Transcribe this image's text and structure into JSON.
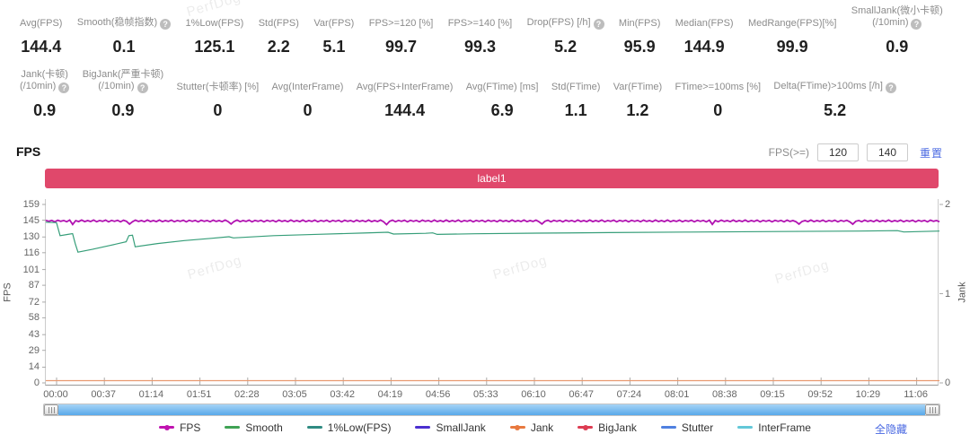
{
  "watermark": "PerfDog",
  "stats_row1": [
    {
      "lines": [
        "Avg(FPS)"
      ],
      "help": false,
      "value": "144.4"
    },
    {
      "lines": [
        "Smooth(稳帧指数)"
      ],
      "help": true,
      "value": "0.1"
    },
    {
      "lines": [
        "1%Low(FPS)"
      ],
      "help": false,
      "value": "125.1"
    },
    {
      "lines": [
        "Std(FPS)"
      ],
      "help": false,
      "value": "2.2"
    },
    {
      "lines": [
        "Var(FPS)"
      ],
      "help": false,
      "value": "5.1"
    },
    {
      "lines": [
        "FPS>=120 [%]"
      ],
      "help": false,
      "value": "99.7"
    },
    {
      "lines": [
        "FPS>=140 [%]"
      ],
      "help": false,
      "value": "99.3"
    },
    {
      "lines": [
        "Drop(FPS) [/h]"
      ],
      "help": true,
      "value": "5.2"
    },
    {
      "lines": [
        "Min(FPS)"
      ],
      "help": false,
      "value": "95.9"
    },
    {
      "lines": [
        "Median(FPS)"
      ],
      "help": false,
      "value": "144.9"
    },
    {
      "lines": [
        "MedRange(FPS)[%]"
      ],
      "help": false,
      "value": "99.9"
    },
    {
      "lines": [
        "SmallJank(微小卡顿)",
        "(/10min)"
      ],
      "help": true,
      "value": "0.9"
    }
  ],
  "stats_row2": [
    {
      "lines": [
        "Jank(卡顿)",
        "(/10min)"
      ],
      "help": true,
      "value": "0.9"
    },
    {
      "lines": [
        "BigJank(严重卡顿)",
        "(/10min)"
      ],
      "help": true,
      "value": "0.9"
    },
    {
      "lines": [
        "Stutter(卡顿率) [%]"
      ],
      "help": false,
      "value": "0"
    },
    {
      "lines": [
        "Avg(InterFrame)"
      ],
      "help": false,
      "value": "0"
    },
    {
      "lines": [
        "Avg(FPS+InterFrame)"
      ],
      "help": false,
      "value": "144.4"
    },
    {
      "lines": [
        "Avg(FTime) [ms]"
      ],
      "help": false,
      "value": "6.9"
    },
    {
      "lines": [
        "Std(FTime)"
      ],
      "help": false,
      "value": "1.1"
    },
    {
      "lines": [
        "Var(FTime)"
      ],
      "help": false,
      "value": "1.2"
    },
    {
      "lines": [
        "FTime>=100ms [%]"
      ],
      "help": false,
      "value": "0"
    },
    {
      "lines": [
        "Delta(FTime)>100ms [/h]"
      ],
      "help": true,
      "value": "5.2"
    }
  ],
  "section": {
    "title": "FPS",
    "filter_label": "FPS(>=)",
    "input1": "120",
    "input2": "140",
    "reset_label": "重置"
  },
  "banner": {
    "label": "label1",
    "color": "#e0486b"
  },
  "chart_data": {
    "type": "line",
    "title": "label1",
    "x_ticks": [
      "00:00",
      "00:37",
      "01:14",
      "01:51",
      "02:28",
      "03:05",
      "03:42",
      "04:19",
      "04:56",
      "05:33",
      "06:10",
      "06:47",
      "07:24",
      "08:01",
      "08:38",
      "09:15",
      "09:52",
      "10:29",
      "11:06"
    ],
    "y_left": {
      "label": "FPS",
      "ticks": [
        159,
        145,
        130,
        116,
        101,
        87,
        72,
        58,
        43,
        29,
        14,
        0
      ],
      "range": [
        0,
        159
      ]
    },
    "y_right": {
      "label": "Jank",
      "ticks": [
        2,
        1,
        0
      ],
      "range": [
        0,
        2
      ]
    },
    "grid": false,
    "legend_position": "bottom",
    "series": [
      {
        "name": "FPS",
        "axis": "left",
        "color": "#b113b1",
        "width": 1.8,
        "style": "jagged",
        "base": 144.3,
        "amp": 0.55,
        "dips": [
          [
            0.03,
            141.2
          ],
          [
            0.092,
            141.5
          ],
          [
            0.206,
            141.6
          ],
          [
            0.38,
            141.0
          ],
          [
            0.556,
            141.6
          ],
          [
            0.746,
            141.3
          ],
          [
            0.842,
            141.5
          ],
          [
            0.903,
            141.4
          ]
        ]
      },
      {
        "name": "Smooth",
        "axis": "left",
        "color": "#369e79",
        "width": 1.2,
        "style": "points",
        "points": [
          [
            0,
            143.2
          ],
          [
            0.012,
            142.8
          ],
          [
            0.016,
            131.2
          ],
          [
            0.024,
            132.2
          ],
          [
            0.03,
            133.0
          ],
          [
            0.033,
            124.0
          ],
          [
            0.036,
            116.5
          ],
          [
            0.052,
            119.0
          ],
          [
            0.072,
            122.5
          ],
          [
            0.09,
            125.8
          ],
          [
            0.093,
            131.2
          ],
          [
            0.097,
            131.6
          ],
          [
            0.1,
            121.3
          ],
          [
            0.125,
            124.2
          ],
          [
            0.155,
            126.8
          ],
          [
            0.185,
            128.8
          ],
          [
            0.205,
            130.2
          ],
          [
            0.21,
            129.2
          ],
          [
            0.255,
            131.2
          ],
          [
            0.305,
            132.4
          ],
          [
            0.355,
            133.5
          ],
          [
            0.383,
            134.2
          ],
          [
            0.389,
            132.6
          ],
          [
            0.425,
            133.3
          ],
          [
            0.433,
            133.7
          ],
          [
            0.438,
            132.3
          ],
          [
            0.48,
            132.9
          ],
          [
            0.55,
            133.4
          ],
          [
            0.63,
            133.9
          ],
          [
            0.72,
            134.4
          ],
          [
            0.82,
            134.9
          ],
          [
            0.91,
            135.3
          ],
          [
            0.953,
            135.7
          ],
          [
            0.96,
            134.5
          ],
          [
            1.0,
            135.3
          ]
        ]
      },
      {
        "name": "Jank",
        "axis": "right",
        "color": "#e89a70",
        "width": 1.2,
        "style": "points",
        "points": [
          [
            0,
            0.025
          ],
          [
            1,
            0.025
          ]
        ]
      }
    ]
  },
  "legend": {
    "items": [
      {
        "label": "FPS",
        "color": "#c013b0",
        "marker": "line-dot"
      },
      {
        "label": "Smooth",
        "color": "#3fa254",
        "marker": "line"
      },
      {
        "label": "1%Low(FPS)",
        "color": "#2f8b82",
        "marker": "line"
      },
      {
        "label": "SmallJank",
        "color": "#4b2fd0",
        "marker": "line"
      },
      {
        "label": "Jank",
        "color": "#e8793f",
        "marker": "line-dot"
      },
      {
        "label": "BigJank",
        "color": "#dd3c52",
        "marker": "line-dot"
      },
      {
        "label": "Stutter",
        "color": "#4f80e0",
        "marker": "line"
      },
      {
        "label": "InterFrame",
        "color": "#63c8d8",
        "marker": "line"
      }
    ],
    "hide_all_label": "全隐藏"
  }
}
